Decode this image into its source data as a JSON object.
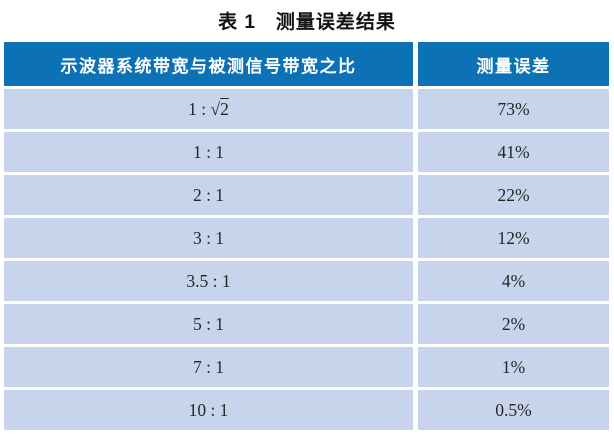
{
  "title": "表 1　测量误差结果",
  "colors": {
    "header_bg": "#0d72b5",
    "header_text": "#ffffff",
    "row_bg": "#c7d4ec",
    "row_text": "#262626",
    "separator": "#ffffff"
  },
  "table": {
    "headers": [
      "示波器系统带宽与被测信号带宽之比",
      "测量误差"
    ],
    "rows": [
      {
        "ratio": "1 : √2",
        "error": "73%"
      },
      {
        "ratio": "1 : 1",
        "error": "41%"
      },
      {
        "ratio": "2 : 1",
        "error": "22%"
      },
      {
        "ratio": "3 : 1",
        "error": "12%"
      },
      {
        "ratio": "3.5 : 1",
        "error": "4%"
      },
      {
        "ratio": "5 : 1",
        "error": "2%"
      },
      {
        "ratio": "7 : 1",
        "error": "1%"
      },
      {
        "ratio": "10 : 1",
        "error": "0.5%"
      }
    ]
  },
  "chart_data": {
    "type": "table",
    "title": "表 1　测量误差结果",
    "columns": [
      "示波器系统带宽与被测信号带宽之比",
      "测量误差"
    ],
    "rows": [
      [
        "1 : √2",
        "73%"
      ],
      [
        "1 : 1",
        "41%"
      ],
      [
        "2 : 1",
        "22%"
      ],
      [
        "3 : 1",
        "12%"
      ],
      [
        "3.5 : 1",
        "4%"
      ],
      [
        "5 : 1",
        "2%"
      ],
      [
        "7 : 1",
        "1%"
      ],
      [
        "10 : 1",
        "0.5%"
      ]
    ]
  }
}
